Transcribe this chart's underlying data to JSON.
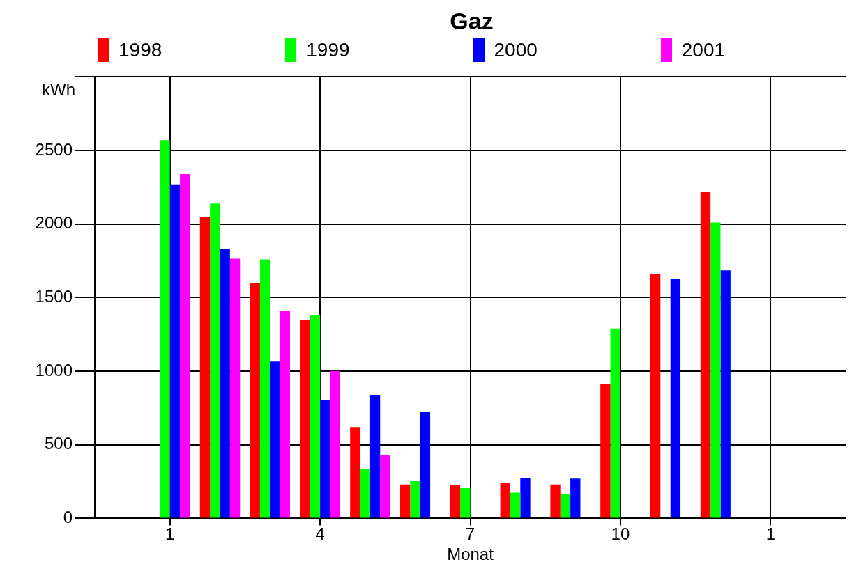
{
  "chart_data": {
    "type": "bar",
    "title": "Gaz",
    "xlabel": "Monat",
    "ylabel": "kWh",
    "categories": [
      null,
      "1",
      null,
      null,
      "4",
      null,
      null,
      "7",
      null,
      null,
      "10",
      null,
      null,
      "1",
      null
    ],
    "series": [
      {
        "name": "1998",
        "color": "#ff0000",
        "values": [
          null,
          null,
          2050,
          1600,
          1350,
          620,
          230,
          225,
          240,
          230,
          910,
          1660,
          2220,
          null,
          null
        ]
      },
      {
        "name": "1999",
        "color": "#00ff00",
        "values": [
          null,
          2570,
          2140,
          1760,
          1380,
          335,
          255,
          205,
          175,
          165,
          1290,
          null,
          2010,
          null,
          null
        ]
      },
      {
        "name": "2000",
        "color": "#0000ff",
        "values": [
          null,
          2270,
          1830,
          1065,
          805,
          840,
          725,
          null,
          275,
          270,
          null,
          1630,
          1685,
          null,
          null
        ]
      },
      {
        "name": "2001",
        "color": "#ff00ff",
        "values": [
          null,
          2340,
          1765,
          1410,
          1000,
          430,
          null,
          null,
          null,
          null,
          null,
          null,
          null,
          null,
          null
        ]
      }
    ],
    "ylim": [
      0,
      3000
    ],
    "yticks": [
      0,
      500,
      1000,
      1500,
      2000,
      2500,
      {
        "value": 3000,
        "label": null
      }
    ],
    "grid": true,
    "legend": "top"
  }
}
